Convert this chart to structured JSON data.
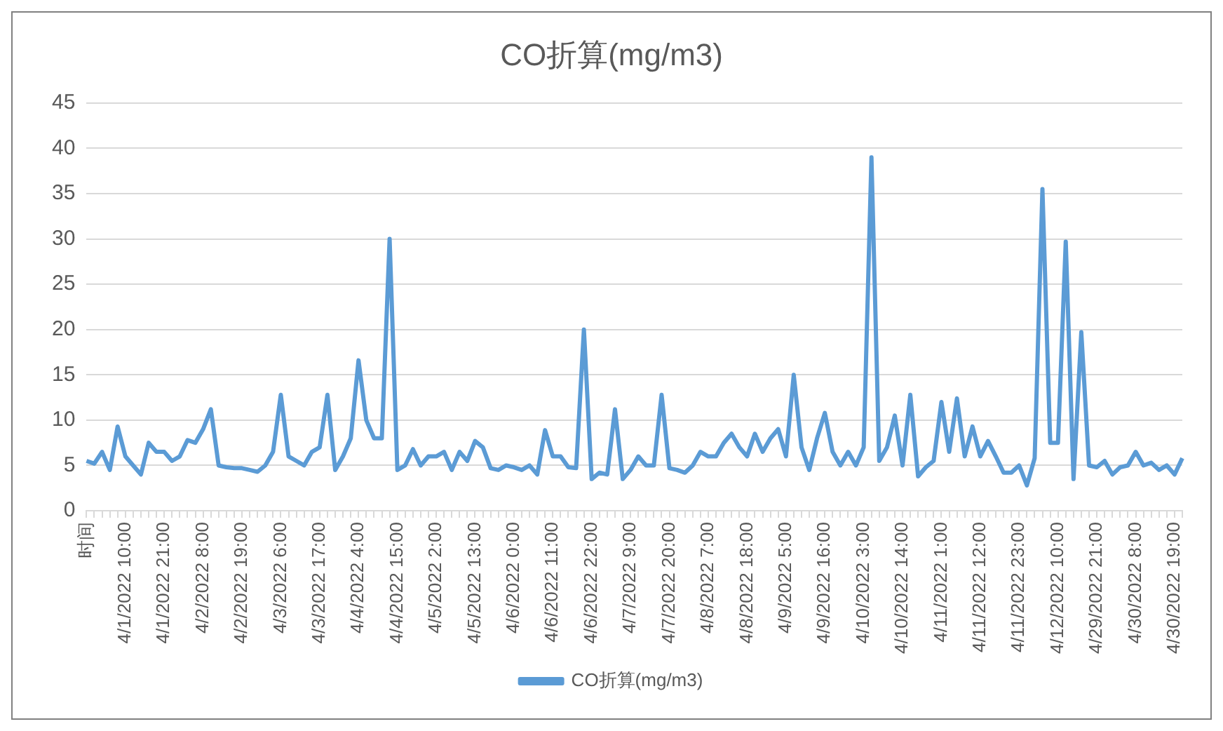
{
  "chart_data": {
    "type": "line",
    "title": "CO折算(mg/m3)",
    "categories": [
      "时间",
      null,
      null,
      null,
      null,
      "4/1/2022 10:00",
      null,
      null,
      null,
      null,
      "4/1/2022 21:00",
      null,
      null,
      null,
      null,
      "4/2/2022 8:00",
      null,
      null,
      null,
      null,
      "4/2/2022 19:00",
      null,
      null,
      null,
      null,
      "4/3/2022 6:00",
      null,
      null,
      null,
      null,
      "4/3/2022 17:00",
      null,
      null,
      null,
      null,
      "4/4/2022 4:00",
      null,
      null,
      null,
      null,
      "4/4/2022 15:00",
      null,
      null,
      null,
      null,
      "4/5/2022 2:00",
      null,
      null,
      null,
      null,
      "4/5/2022 13:00",
      null,
      null,
      null,
      null,
      "4/6/2022 0:00",
      null,
      null,
      null,
      null,
      "4/6/2022 11:00",
      null,
      null,
      null,
      null,
      "4/6/2022 22:00",
      null,
      null,
      null,
      null,
      "4/7/2022 9:00",
      null,
      null,
      null,
      null,
      "4/7/2022 20:00",
      null,
      null,
      null,
      null,
      "4/8/2022 7:00",
      null,
      null,
      null,
      null,
      "4/8/2022 18:00",
      null,
      null,
      null,
      null,
      "4/9/2022 5:00",
      null,
      null,
      null,
      null,
      "4/9/2022 16:00",
      null,
      null,
      null,
      null,
      "4/10/2022 3:00",
      null,
      null,
      null,
      null,
      "4/10/2022 14:00",
      null,
      null,
      null,
      null,
      "4/11/2022 1:00",
      null,
      null,
      null,
      null,
      "4/11/2022 12:00",
      null,
      null,
      null,
      null,
      "4/11/2022 23:00",
      null,
      null,
      null,
      null,
      "4/12/2022 10:00",
      null,
      null,
      null,
      null,
      "4/29/2022 21:00",
      null,
      null,
      null,
      null,
      "4/30/2022 8:00",
      null,
      null,
      null,
      null,
      "4/30/2022 19:00",
      null
    ],
    "series": [
      {
        "name": "CO折算(mg/m3)",
        "color": "#5b9bd5",
        "values": [
          5.5,
          5.2,
          6.5,
          4.5,
          9.3,
          6,
          5,
          4,
          7.5,
          6.5,
          6.5,
          5.5,
          6,
          7.8,
          7.5,
          9,
          11.2,
          5,
          4.8,
          4.7,
          4.7,
          4.5,
          4.3,
          5,
          6.5,
          12.8,
          6,
          5.5,
          5,
          6.5,
          7,
          12.8,
          4.5,
          6,
          8,
          16.6,
          10,
          8,
          8,
          30,
          4.5,
          5,
          6.8,
          5,
          6,
          6,
          6.5,
          4.5,
          6.5,
          5.5,
          7.7,
          7,
          4.7,
          4.5,
          5,
          4.8,
          4.5,
          5,
          4,
          8.9,
          6,
          6,
          4.8,
          4.7,
          20,
          3.5,
          4.2,
          4,
          11.2,
          3.5,
          4.5,
          6,
          5,
          5,
          12.8,
          4.7,
          4.5,
          4.2,
          5,
          6.5,
          6,
          6,
          7.5,
          8.5,
          7,
          6,
          8.5,
          6.5,
          8,
          9,
          6,
          15,
          7,
          4.5,
          8,
          10.8,
          6.5,
          5,
          6.5,
          5,
          7,
          39,
          5.5,
          7,
          10.5,
          5,
          12.8,
          3.8,
          4.8,
          5.5,
          12,
          6.5,
          12.4,
          6,
          9.3,
          6,
          7.7,
          6,
          4.2,
          4.2,
          5,
          2.8,
          5.8,
          35.5,
          7.5,
          7.5,
          29.7,
          3.5,
          19.7,
          5,
          4.8,
          5.5,
          4,
          4.8,
          5,
          6.5,
          5,
          5.3,
          4.5,
          5,
          4,
          5.8
        ]
      }
    ],
    "ylim": [
      0,
      45
    ],
    "yticks": [
      0,
      5,
      10,
      15,
      20,
      25,
      30,
      35,
      40,
      45
    ],
    "grid": "y",
    "legend": "bottom",
    "marker": "none",
    "line_style": "solid"
  }
}
